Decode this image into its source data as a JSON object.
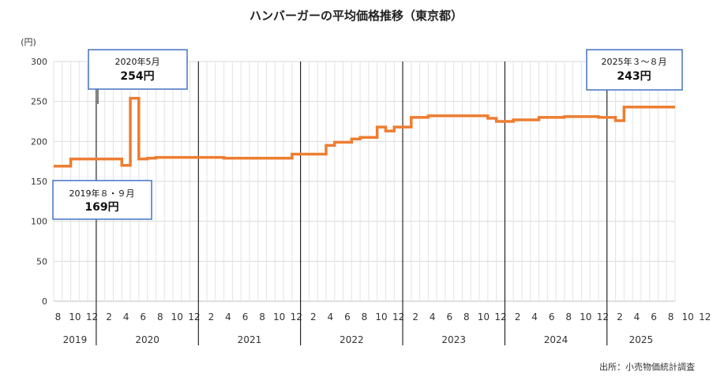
{
  "chart_data": {
    "type": "line",
    "title": "ハンバーガーの平均価格推移（東京都）",
    "ylabel": "(円)",
    "ylim": [
      0,
      300
    ],
    "yticks": [
      "0",
      "50",
      "100",
      "150",
      "200",
      "250",
      "300"
    ],
    "grid": true,
    "line_color": "#ED7D31",
    "source": "出所：小売物価統計調査",
    "x_tick_labels": [
      "8",
      "10",
      "12",
      "2",
      "4",
      "6",
      "8",
      "10",
      "12",
      "2",
      "4",
      "6",
      "8",
      "10",
      "12",
      "2",
      "4",
      "6",
      "8",
      "10",
      "12",
      "2",
      "4",
      "6",
      "8",
      "10",
      "12",
      "2",
      "4",
      "6",
      "8",
      "10",
      "12",
      "2",
      "4",
      "6",
      "8",
      "10",
      "12",
      "2",
      "4",
      "6",
      "8"
    ],
    "years": [
      "2019",
      "2020",
      "2021",
      "2022",
      "2023",
      "2024",
      "2025"
    ],
    "series": [
      {
        "x": [
          "2019-08",
          "2019-09",
          "2019-10",
          "2019-11",
          "2019-12",
          "2020-01",
          "2020-02",
          "2020-03",
          "2020-04",
          "2020-05",
          "2020-06",
          "2020-07",
          "2020-08",
          "2020-09",
          "2020-10",
          "2020-11",
          "2020-12",
          "2021-01",
          "2021-02",
          "2021-03",
          "2021-04",
          "2021-05",
          "2021-06",
          "2021-07",
          "2021-08",
          "2021-09",
          "2021-10",
          "2021-11",
          "2021-12",
          "2022-01",
          "2022-02",
          "2022-03",
          "2022-04",
          "2022-05",
          "2022-06",
          "2022-07",
          "2022-08",
          "2022-09",
          "2022-10",
          "2022-11",
          "2022-12",
          "2023-01",
          "2023-02",
          "2023-03",
          "2023-04",
          "2023-05",
          "2023-06",
          "2023-07",
          "2023-08",
          "2023-09",
          "2023-10",
          "2023-11",
          "2023-12",
          "2024-01",
          "2024-02",
          "2024-03",
          "2024-04",
          "2024-05",
          "2024-06",
          "2024-07",
          "2024-08",
          "2024-09",
          "2024-10",
          "2024-11",
          "2024-12",
          "2025-01",
          "2025-02",
          "2025-03",
          "2025-04",
          "2025-05",
          "2025-06",
          "2025-07",
          "2025-08"
        ],
        "values": [
          169,
          169,
          178,
          178,
          178,
          178,
          178,
          178,
          170,
          254,
          178,
          179,
          180,
          180,
          180,
          180,
          180,
          180,
          180,
          180,
          179,
          179,
          179,
          179,
          179,
          179,
          179,
          179,
          184,
          184,
          184,
          184,
          195,
          199,
          199,
          203,
          205,
          205,
          218,
          213,
          218,
          218,
          230,
          230,
          232,
          232,
          232,
          232,
          232,
          232,
          232,
          229,
          225,
          225,
          227,
          227,
          227,
          230,
          230,
          230,
          231,
          231,
          231,
          231,
          230,
          230,
          226,
          243,
          243,
          243,
          243,
          243,
          243
        ]
      }
    ],
    "annotations": [
      {
        "line1": "2020年5月",
        "line2": "254円"
      },
      {
        "line1": "2019年８・９月",
        "line2": "169円"
      },
      {
        "line1": "2025年３～８月",
        "line2": "243円"
      }
    ]
  }
}
